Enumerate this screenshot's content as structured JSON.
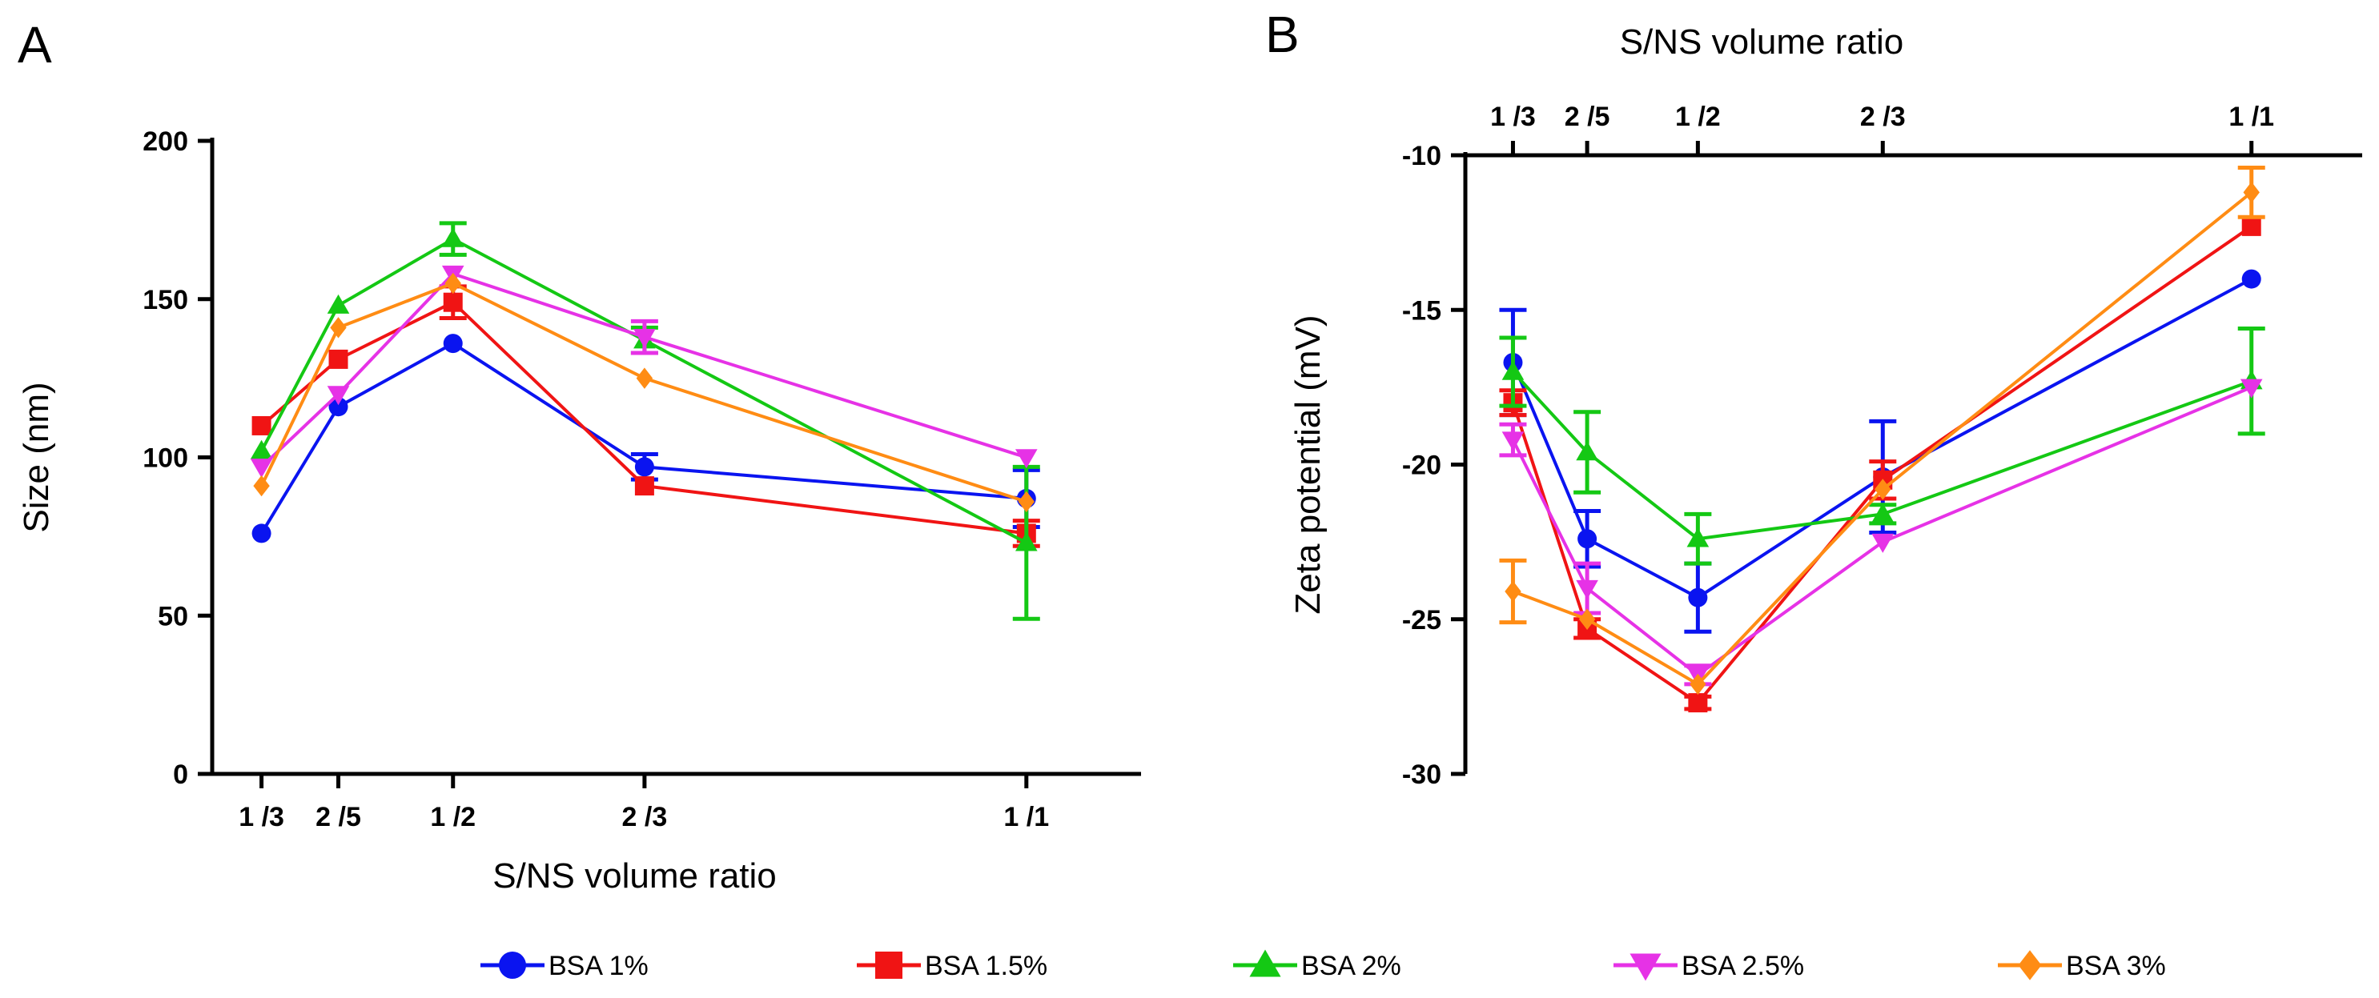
{
  "panels": {
    "a": {
      "label": "A"
    },
    "b": {
      "label": "B"
    }
  },
  "legend": [
    {
      "name": "BSA 1%",
      "color": "#0a14f0",
      "marker": "circle"
    },
    {
      "name": "BSA 1.5%",
      "color": "#f01414",
      "marker": "square"
    },
    {
      "name": "BSA 2%",
      "color": "#14c814",
      "marker": "triangle-up"
    },
    {
      "name": "BSA 2.5%",
      "color": "#e632e6",
      "marker": "triangle-down"
    },
    {
      "name": "BSA 3%",
      "color": "#ff8c14",
      "marker": "diamond"
    }
  ],
  "chart_data": [
    {
      "type": "line",
      "panel": "A",
      "title": "",
      "xlabel": "S/NS volume ratio",
      "ylabel": "Size (nm)",
      "x": [
        0.333,
        0.4,
        0.5,
        0.667,
        1.0
      ],
      "x_tick_labels": [
        "1 /3",
        "2 /5",
        "1 /2",
        "2 /3",
        "1 /1"
      ],
      "xlim": [
        0.29,
        1.1
      ],
      "ylim": [
        0,
        200
      ],
      "y_ticks": [
        0,
        50,
        100,
        150,
        200
      ],
      "y_tick_labels": [
        "0",
        "50",
        "100",
        "150",
        "200"
      ],
      "x_axis_position": "bottom",
      "grid": false,
      "series": [
        {
          "name": "BSA 1%",
          "values": [
            76,
            116,
            136,
            97,
            87
          ],
          "errors": [
            0,
            0,
            0,
            4,
            9
          ]
        },
        {
          "name": "BSA 1.5%",
          "values": [
            110,
            131,
            149,
            91,
            76
          ],
          "errors": [
            0,
            0,
            5,
            0,
            4
          ]
        },
        {
          "name": "BSA 2%",
          "values": [
            102,
            148,
            169,
            137,
            73
          ],
          "errors": [
            0,
            0,
            5,
            4,
            24
          ]
        },
        {
          "name": "BSA 2.5%",
          "values": [
            97,
            120,
            158,
            138,
            100
          ],
          "errors": [
            0,
            0,
            0,
            5,
            0
          ]
        },
        {
          "name": "BSA 3%",
          "values": [
            91,
            141,
            155,
            125,
            86
          ],
          "errors": [
            0,
            0,
            0,
            0,
            0
          ]
        }
      ]
    },
    {
      "type": "line",
      "panel": "B",
      "title": "",
      "xlabel": "S/NS volume ratio",
      "ylabel": "Zeta potential (mV)",
      "x": [
        0.333,
        0.4,
        0.5,
        0.667,
        1.0
      ],
      "x_tick_labels": [
        "1 /3",
        "2 /5",
        "1 /2",
        "2 /3",
        "1 /1"
      ],
      "xlim": [
        0.29,
        1.1
      ],
      "ylim": [
        -30,
        -10
      ],
      "y_ticks": [
        -30,
        -25,
        -20,
        -15,
        -10
      ],
      "y_tick_labels": [
        "-30",
        "-25",
        "-20",
        "-15",
        "-10"
      ],
      "x_axis_position": "top",
      "grid": false,
      "series": [
        {
          "name": "BSA 1%",
          "values": [
            -16.7,
            -22.4,
            -24.3,
            -20.4,
            -14.0
          ],
          "errors": [
            1.7,
            0.9,
            1.1,
            1.8,
            0
          ]
        },
        {
          "name": "BSA 1.5%",
          "values": [
            -18.0,
            -25.3,
            -27.7,
            -20.5,
            -12.3
          ],
          "errors": [
            0.4,
            0.3,
            0.2,
            0.6,
            0
          ]
        },
        {
          "name": "BSA 2%",
          "values": [
            -17.0,
            -19.6,
            -22.4,
            -21.6,
            -17.3
          ],
          "errors": [
            1.1,
            1.3,
            0.8,
            0.3,
            1.7
          ]
        },
        {
          "name": "BSA 2.5%",
          "values": [
            -19.2,
            -24.0,
            -26.8,
            -22.5,
            -17.5
          ],
          "errors": [
            0.5,
            0.8,
            0.3,
            0,
            0
          ]
        },
        {
          "name": "BSA 3%",
          "values": [
            -24.1,
            -25.0,
            -27.1,
            -20.8,
            -11.2
          ],
          "errors": [
            1.0,
            0,
            0,
            0,
            0.8
          ]
        }
      ]
    }
  ]
}
